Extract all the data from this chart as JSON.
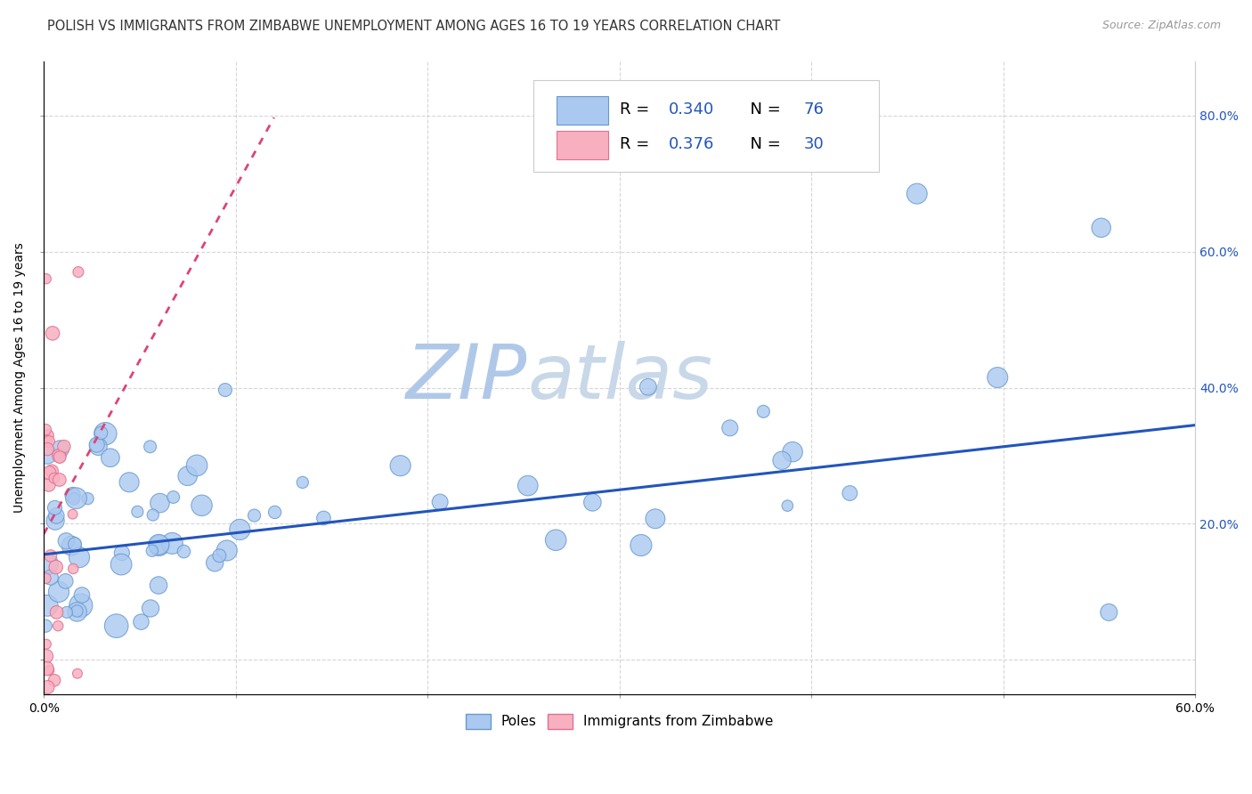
{
  "title": "POLISH VS IMMIGRANTS FROM ZIMBABWE UNEMPLOYMENT AMONG AGES 16 TO 19 YEARS CORRELATION CHART",
  "source": "Source: ZipAtlas.com",
  "ylabel": "Unemployment Among Ages 16 to 19 years",
  "ylabel_right_ticks": [
    "",
    "20.0%",
    "40.0%",
    "60.0%",
    "80.0%"
  ],
  "ylabel_right_vals": [
    0.0,
    0.2,
    0.4,
    0.6,
    0.8
  ],
  "xmin": 0.0,
  "xmax": 0.6,
  "ymin": -0.05,
  "ymax": 0.88,
  "poles_color": "#aac8f0",
  "poles_edge_color": "#6699cc",
  "zimb_color": "#f8b0c0",
  "zimb_edge_color": "#e07090",
  "trend_poles_color": "#2255bb",
  "trend_zimb_color": "#dd4477",
  "watermark_zip_color": "#b0c8e8",
  "watermark_atlas_color": "#c8d8e8",
  "R_poles": 0.34,
  "N_poles": 76,
  "R_zimb": 0.376,
  "N_zimb": 30,
  "grid_color": "#cccccc",
  "background_color": "#ffffff",
  "title_fontsize": 10.5,
  "axis_label_fontsize": 10,
  "tick_fontsize": 10,
  "legend_fontsize": 13,
  "poles_trend_start_y": 0.155,
  "poles_trend_end_y": 0.345,
  "zimb_trend_x1": 0.0,
  "zimb_trend_y1": 0.185,
  "zimb_trend_x2": 0.05,
  "zimb_trend_y2": 0.44
}
